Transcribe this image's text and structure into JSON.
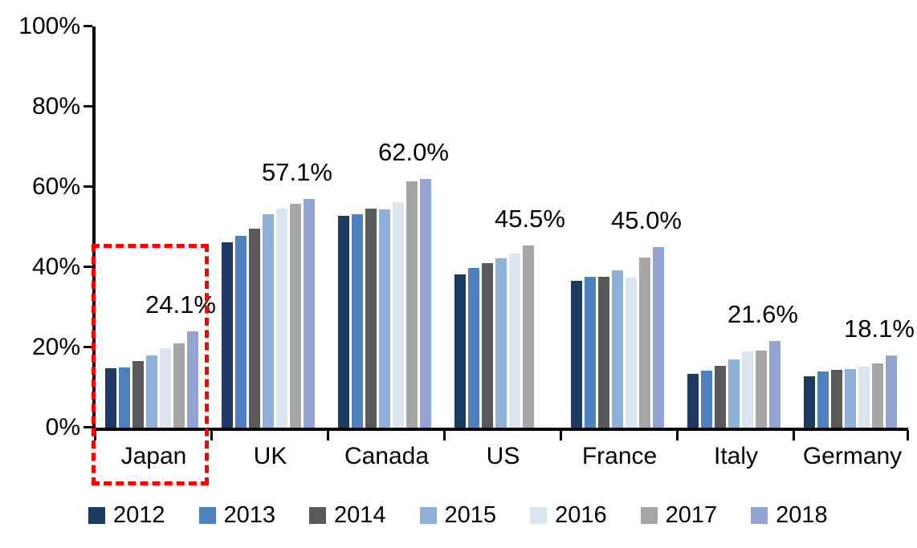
{
  "chart_data": {
    "type": "bar",
    "title": "",
    "xlabel": "",
    "ylabel": "",
    "categories": [
      "Japan",
      "UK",
      "Canada",
      "US",
      "France",
      "Italy",
      "Germany"
    ],
    "series": [
      {
        "name": "2012",
        "color": "#1D3A63",
        "values": [
          14.8,
          46.3,
          52.9,
          38.2,
          36.6,
          13.4,
          12.8
        ]
      },
      {
        "name": "2013",
        "color": "#4E80BE",
        "values": [
          15.0,
          47.8,
          53.2,
          39.9,
          37.6,
          14.3,
          14.0
        ]
      },
      {
        "name": "2014",
        "color": "#58595B",
        "values": [
          16.6,
          49.7,
          54.7,
          41.1,
          37.6,
          15.4,
          14.4
        ]
      },
      {
        "name": "2015",
        "color": "#8FB0D9",
        "values": [
          18.1,
          53.2,
          54.5,
          42.2,
          39.2,
          17.0,
          14.7
        ]
      },
      {
        "name": "2016",
        "color": "#DCE4F1",
        "values": [
          19.9,
          54.7,
          56.3,
          43.5,
          37.4,
          19.0,
          15.3
        ]
      },
      {
        "name": "2017",
        "color": "#A6A6A6",
        "values": [
          21.1,
          55.8,
          61.5,
          45.5,
          42.4,
          19.2,
          16.0
        ]
      },
      {
        "name": "2018",
        "color": "#93A3D3",
        "values": [
          24.1,
          57.1,
          62.0,
          null,
          45.0,
          21.6,
          18.1
        ]
      }
    ],
    "bar_labels": [
      "24.1%",
      "57.1%",
      "62.0%",
      "45.5%",
      "45.0%",
      "21.6%",
      "18.1%"
    ],
    "y_axis": {
      "min": 0,
      "max": 100,
      "tick_step": 20,
      "tick_labels": [
        "0%",
        "20%",
        "40%",
        "60%",
        "80%",
        "100%"
      ]
    },
    "grid": false,
    "legend_position": "bottom",
    "highlight": {
      "category": "Japan",
      "shape": "dashed-rectangle",
      "color": "#FF0000"
    }
  }
}
